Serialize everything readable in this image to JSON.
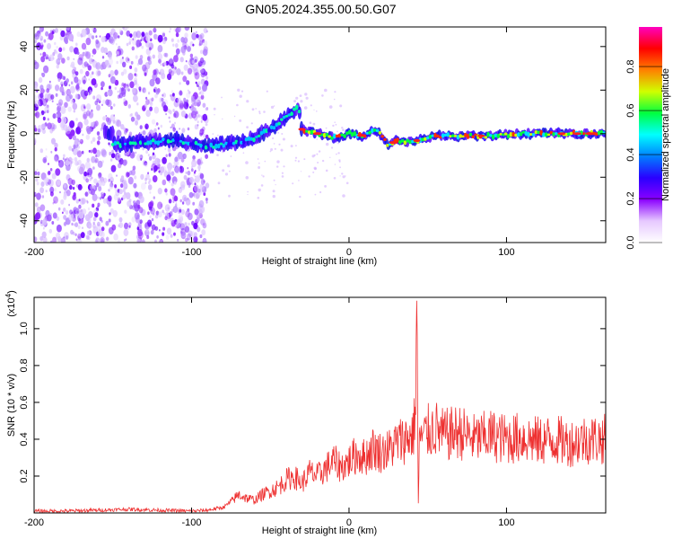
{
  "title": "GN05.2024.355.00.50.G07",
  "chart_data": [
    {
      "type": "heatmap",
      "xlabel": "Height of straight line (km)",
      "ylabel": "Frequency (Hz)",
      "xlim": [
        -200,
        163
      ],
      "ylim": [
        -50,
        49
      ],
      "x_ticks": [
        -200,
        -100,
        0,
        100
      ],
      "y_ticks": [
        -40,
        -20,
        0,
        20,
        40
      ],
      "colorbar": {
        "label": "Normalized spectral amplitude",
        "range": [
          0,
          0.98
        ],
        "ticks": [
          0.0,
          0.2,
          0.4,
          0.6,
          0.8
        ],
        "colors": [
          "#ffffff",
          "#e6c8ff",
          "#8a00ff",
          "#2a00ff",
          "#0080ff",
          "#00ffff",
          "#00ff40",
          "#d0ff00",
          "#ff8000",
          "#ff0000",
          "#ff00c0"
        ]
      },
      "ridge": [
        {
          "x": -150,
          "y": -5
        },
        {
          "x": -130,
          "y": -4
        },
        {
          "x": -110,
          "y": -3
        },
        {
          "x": -90,
          "y": -6
        },
        {
          "x": -80,
          "y": -5
        },
        {
          "x": -70,
          "y": -4
        },
        {
          "x": -60,
          "y": -2
        },
        {
          "x": -50,
          "y": 2
        },
        {
          "x": -45,
          "y": 5
        },
        {
          "x": -38,
          "y": 9
        },
        {
          "x": -32,
          "y": 12
        },
        {
          "x": -30,
          "y": 2
        },
        {
          "x": -20,
          "y": 0
        },
        {
          "x": -10,
          "y": -2
        },
        {
          "x": 0,
          "y": 0
        },
        {
          "x": 10,
          "y": -1
        },
        {
          "x": 15,
          "y": 2
        },
        {
          "x": 20,
          "y": 0
        },
        {
          "x": 25,
          "y": -6
        },
        {
          "x": 30,
          "y": -3
        },
        {
          "x": 35,
          "y": -4
        },
        {
          "x": 45,
          "y": -3
        },
        {
          "x": 55,
          "y": -1
        },
        {
          "x": 70,
          "y": -1
        },
        {
          "x": 90,
          "y": -1
        },
        {
          "x": 110,
          "y": 0
        },
        {
          "x": 130,
          "y": 0
        },
        {
          "x": 150,
          "y": 0
        },
        {
          "x": 163,
          "y": 0
        }
      ]
    },
    {
      "type": "line",
      "xlabel": "Height of straight line (km)",
      "ylabel": "SNR (10 * v/v)",
      "y_multiplier": "(x10",
      "y_multiplier_exp": "4",
      "y_multiplier_close": ")",
      "xlim": [
        -200,
        163
      ],
      "ylim": [
        0,
        1.17
      ],
      "x_ticks": [
        -200,
        -100,
        0,
        100
      ],
      "y_ticks": [
        0.2,
        0.4,
        0.6,
        0.8,
        1.0
      ],
      "y_tick_labels": [
        "0.2",
        "0.4",
        "0.6",
        "0.8",
        "1.0"
      ],
      "color": "#ee3030",
      "series": [
        {
          "x": [
            -200,
            -180,
            -160,
            -140,
            -120,
            -100,
            -90,
            -80,
            -75,
            -70,
            -65,
            -60,
            -55,
            -50,
            -45,
            -40,
            -35,
            -30,
            -25,
            -20,
            -15,
            -10,
            -5,
            0,
            5,
            10,
            15,
            20,
            25,
            30,
            35,
            40,
            42,
            43,
            44,
            45,
            46,
            50,
            55,
            60,
            70,
            80,
            90,
            100,
            110,
            120,
            130,
            140,
            150,
            163
          ],
          "y": [
            0.01,
            0.01,
            0.015,
            0.02,
            0.015,
            0.01,
            0.015,
            0.03,
            0.06,
            0.1,
            0.08,
            0.07,
            0.1,
            0.12,
            0.14,
            0.18,
            0.2,
            0.16,
            0.22,
            0.2,
            0.24,
            0.28,
            0.25,
            0.28,
            0.32,
            0.3,
            0.35,
            0.33,
            0.34,
            0.38,
            0.4,
            0.42,
            0.5,
            1.17,
            0.05,
            0.48,
            0.4,
            0.44,
            0.46,
            0.42,
            0.44,
            0.4,
            0.42,
            0.4,
            0.41,
            0.39,
            0.4,
            0.38,
            0.4,
            0.4
          ]
        }
      ]
    }
  ]
}
